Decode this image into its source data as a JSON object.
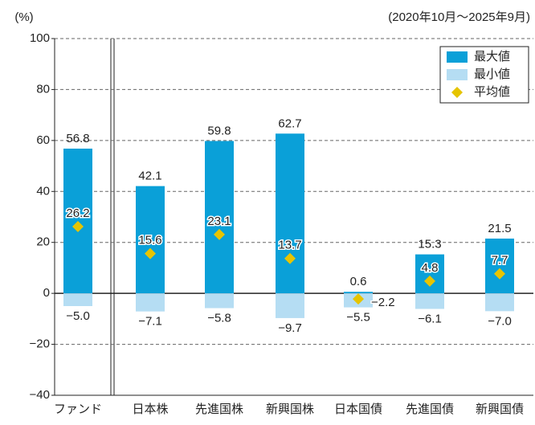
{
  "chart_data": {
    "type": "range-bar",
    "y_label": "(%)",
    "subtitle": "(2020年10月～2025年9月)",
    "categories": [
      "ファンド",
      "日本株",
      "先進国株",
      "新興国株",
      "日本国債",
      "先進国債",
      "新興国債"
    ],
    "series": [
      {
        "name": "最大値",
        "color": "#0aa0d8",
        "values": [
          56.8,
          42.1,
          59.8,
          62.7,
          0.6,
          15.3,
          21.5
        ]
      },
      {
        "name": "最小値",
        "color": "#b5ddf3",
        "values": [
          -5.0,
          -7.1,
          -5.8,
          -9.7,
          -5.5,
          -6.1,
          -7.0
        ],
        "value_labels": [
          "−5.0",
          "−7.1",
          "−5.8",
          "−9.7",
          "−5.5",
          "−6.1",
          "−7.0"
        ]
      },
      {
        "name": "平均値",
        "color": "#e6c400",
        "values": [
          26.2,
          15.6,
          23.1,
          13.7,
          -2.2,
          4.8,
          7.7
        ],
        "value_labels": [
          "26.2",
          "15.6",
          "23.1",
          "13.7",
          "−2.2",
          "4.8",
          "7.7"
        ]
      }
    ],
    "ylim": [
      -40,
      100
    ],
    "yticks": [
      {
        "value": -40,
        "label": "−40"
      },
      {
        "value": -20,
        "label": "−20"
      },
      0,
      20,
      40,
      60,
      80,
      100
    ],
    "grid": true,
    "legend": "top-right"
  }
}
